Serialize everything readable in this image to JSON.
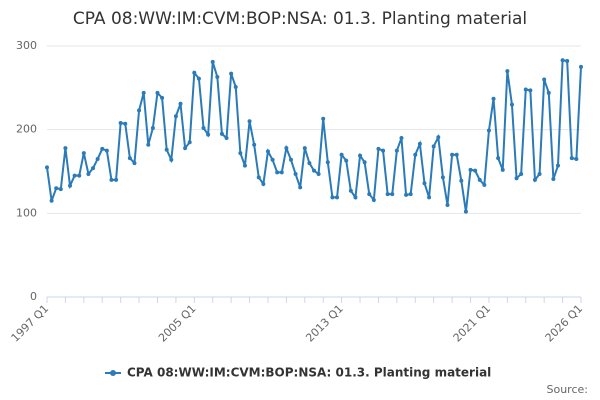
{
  "chart_data": {
    "type": "line",
    "title": "CPA 08:WW:IM:CVM:BOP:NSA: 01.3. Planting material",
    "source": "Source:",
    "categories": [
      "1997 Q1",
      null,
      null,
      null,
      null,
      null,
      null,
      null,
      null,
      null,
      null,
      null,
      null,
      null,
      null,
      null,
      null,
      null,
      null,
      null,
      null,
      null,
      null,
      null,
      null,
      null,
      null,
      null,
      null,
      null,
      null,
      null,
      "2005 Q1",
      null,
      null,
      null,
      null,
      null,
      null,
      null,
      null,
      null,
      null,
      null,
      null,
      null,
      null,
      null,
      null,
      null,
      null,
      null,
      null,
      null,
      null,
      null,
      null,
      null,
      null,
      null,
      null,
      null,
      null,
      null,
      "2013 Q1",
      null,
      null,
      null,
      null,
      null,
      null,
      null,
      null,
      null,
      null,
      null,
      null,
      null,
      null,
      null,
      null,
      null,
      null,
      null,
      null,
      null,
      null,
      null,
      null,
      null,
      null,
      null,
      null,
      null,
      null,
      null,
      "2021 Q1",
      null,
      null,
      null,
      null,
      null,
      null,
      null,
      null,
      null,
      null,
      null,
      null,
      null,
      null,
      null,
      null,
      null,
      null,
      null,
      "2026 Q1"
    ],
    "series": [
      {
        "name": "CPA 08:WW:IM:CVM:BOP:NSA: 01.3. Planting material",
        "color": "#2b7bb9",
        "values": [
          155,
          115,
          130,
          129,
          178,
          133,
          145,
          145,
          172,
          147,
          154,
          165,
          177,
          175,
          140,
          140,
          208,
          207,
          166,
          160,
          223,
          244,
          182,
          202,
          244,
          238,
          176,
          164,
          216,
          231,
          178,
          185,
          268,
          261,
          202,
          194,
          281,
          263,
          195,
          190,
          267,
          251,
          172,
          157,
          210,
          182,
          143,
          135,
          174,
          164,
          149,
          149,
          178,
          164,
          147,
          131,
          178,
          160,
          151,
          147,
          213,
          161,
          119,
          119,
          170,
          163,
          127,
          119,
          169,
          161,
          123,
          116,
          177,
          175,
          123,
          123,
          175,
          190,
          122,
          123,
          170,
          183,
          136,
          119,
          180,
          191,
          143,
          110,
          170,
          170,
          139,
          102,
          152,
          151,
          140,
          134,
          199,
          237,
          166,
          152,
          270,
          230,
          142,
          147,
          248,
          247,
          140,
          147,
          260,
          244,
          141,
          157,
          283,
          282,
          166,
          165,
          275
        ]
      }
    ],
    "ylim": [
      0,
      300
    ],
    "yticks": [
      0,
      100,
      200,
      300
    ],
    "grid": true
  }
}
